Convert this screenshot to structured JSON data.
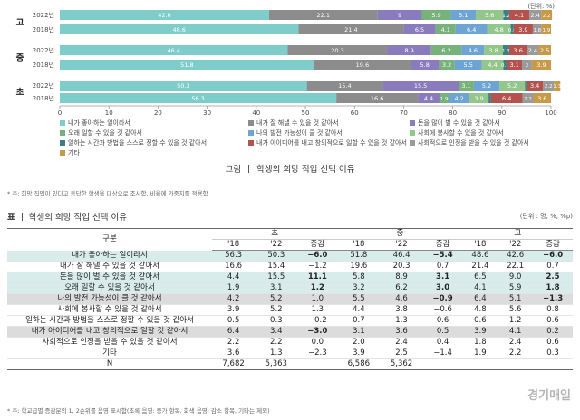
{
  "chart_data": {
    "type": "bar",
    "stacked": true,
    "orientation": "horizontal",
    "unit": "(단위: %)",
    "xlim": [
      0,
      100
    ],
    "xticks": [
      "0",
      "10",
      "20",
      "30",
      "40",
      "50",
      "60",
      "70",
      "80",
      "90",
      "100"
    ],
    "groups": [
      {
        "name": "고",
        "rows": [
          {
            "year": "2022년",
            "values": [
              42.6,
              22.1,
              9.0,
              5.9,
              5.1,
              5.6,
              1.2,
              4.1,
              2.4,
              2.2
            ],
            "labels": [
              "42.6",
              "22.1",
              "9",
              "5.9",
              "5.1",
              "5.6",
              "1.2",
              "4.1",
              "2.4",
              "2.2"
            ]
          },
          {
            "year": "2018년",
            "values": [
              48.6,
              21.4,
              6.5,
              4.1,
              6.4,
              4.8,
              0.6,
              3.9,
              1.8,
              1.9
            ],
            "labels": [
              "48.6",
              "21.4",
              "6.5",
              "4.1",
              "6.4",
              "4.8",
              "0.6",
              "3.9",
              "1.8",
              "1.9"
            ]
          }
        ]
      },
      {
        "name": "중",
        "rows": [
          {
            "year": "2022년",
            "values": [
              46.4,
              20.3,
              8.9,
              6.2,
              4.6,
              3.8,
              1.3,
              3.6,
              2.4,
              2.5
            ],
            "labels": [
              "46.4",
              "20.3",
              "8.9",
              "6.2",
              "4.6",
              "3.8",
              "1.3",
              "3.6",
              "2.4",
              "2.5"
            ]
          },
          {
            "year": "2018년",
            "values": [
              51.8,
              19.6,
              5.8,
              3.2,
              5.5,
              4.4,
              0.7,
              3.1,
              2.0,
              3.9
            ],
            "labels": [
              "51.8",
              "19.6",
              "5.8",
              "3.2",
              "5.5",
              "4.4",
              "0.7",
              "3.1",
              "2",
              "3.9"
            ]
          }
        ]
      },
      {
        "name": "초",
        "rows": [
          {
            "year": "2022년",
            "values": [
              50.3,
              15.4,
              15.5,
              3.1,
              5.2,
              5.2,
              0.3,
              3.4,
              2.2,
              1.3
            ],
            "labels": [
              "50.3",
              "15.4",
              "15.5",
              "3.1",
              "5.2",
              "5.2",
              "0.3",
              "3.4",
              "2.2",
              "1.3"
            ]
          },
          {
            "year": "2018년",
            "values": [
              56.3,
              16.6,
              4.4,
              1.9,
              4.2,
              3.9,
              0.5,
              6.4,
              2.2,
              3.6
            ],
            "labels": [
              "56.3",
              "16.6",
              "4.4",
              "1.9",
              "4.2",
              "3.9",
              "0.5",
              "6.4",
              "2.2",
              "3.6"
            ]
          }
        ]
      }
    ],
    "series": [
      {
        "name": "내가 좋아하는 일이라서",
        "color": "#7ecdcb"
      },
      {
        "name": "내가 잘 해낼 수 있을 것 같아서",
        "color": "#8c8c8c"
      },
      {
        "name": "돈을 많이 벌 수 있을 것 같아서",
        "color": "#8a7bbd"
      },
      {
        "name": "오래 일할 수 있을 것 같아서",
        "color": "#77b27a"
      },
      {
        "name": "나의 발전 가능성이 클 것 같아서",
        "color": "#6ea4d3"
      },
      {
        "name": "사회에 봉사할 수 있을 것 같아서",
        "color": "#93c68a"
      },
      {
        "name": "일하는 시간과 방법을 스스로 정할 수 있을 것 같아서",
        "color": "#3d7e82"
      },
      {
        "name": "내가 아이디어를 내고 창의적으로 일할 수 있을 것 같아서",
        "color": "#b3524e"
      },
      {
        "name": "사회적으로 인정을 받을 수 있을 것 같아서",
        "color": "#9a9a9a"
      },
      {
        "name": "기타",
        "color": "#c79a4a"
      }
    ],
    "legend_order": [
      0,
      1,
      2,
      3,
      4,
      5,
      6,
      7,
      8,
      9
    ],
    "legend_placement": "bottom"
  },
  "figure": {
    "label": "그림",
    "title": "학생의 희망 직업 선택 이유",
    "note": "* 주: 희망 직업이 있다고 응답한 학생을 대상으로 조사함, 비율에 가중치를 적용함"
  },
  "table": {
    "label": "표",
    "title": "학생의 희망 직업 선택 이유",
    "unit": "(단위 : 명, %, %p)",
    "row_header": "구분",
    "groups": [
      "초",
      "중",
      "고"
    ],
    "subheaders": [
      "'18",
      "'22",
      "증감"
    ],
    "rows": [
      {
        "label": "내가 좋아하는 일이라서",
        "hl": "hl",
        "vals": [
          "56.3",
          "50.3",
          "−6.0",
          "51.8",
          "46.4",
          "−5.4",
          "48.6",
          "42.6",
          "−6.0"
        ],
        "bold": [
          2,
          5,
          8
        ]
      },
      {
        "label": "내가 잘 해낼 수 있을 것 같아서",
        "hl": "",
        "vals": [
          "16.6",
          "15.4",
          "−1.2",
          "19.6",
          "20.3",
          "0.7",
          "21.4",
          "22.1",
          "0.7"
        ],
        "bold": []
      },
      {
        "label": "돈을 많이 벌 수 있을 것 같아서",
        "hl": "hl",
        "vals": [
          "4.4",
          "15.5",
          "11.1",
          "5.8",
          "8.9",
          "3.1",
          "6.5",
          "9.0",
          "2.5"
        ],
        "bold": [
          2,
          5,
          8
        ]
      },
      {
        "label": "오래 일할 수 있을 것 같아서",
        "hl": "hl",
        "vals": [
          "1.9",
          "3.1",
          "1.2",
          "3.2",
          "6.2",
          "3.0",
          "4.1",
          "5.9",
          "1.8"
        ],
        "bold": [
          2,
          5,
          8
        ]
      },
      {
        "label": "나의 발전 가능성이 클 것 같아서",
        "hl": "hlg",
        "vals": [
          "4.2",
          "5.2",
          "1.0",
          "5.5",
          "4.6",
          "−0.9",
          "6.4",
          "5.1",
          "−1.3"
        ],
        "bold": [
          5,
          8
        ]
      },
      {
        "label": "사회에 봉사할 수 있을 것 같아서",
        "hl": "",
        "vals": [
          "3.9",
          "5.2",
          "1.3",
          "4.4",
          "3.8",
          "−0.6",
          "4.8",
          "5.6",
          "0.8"
        ],
        "bold": []
      },
      {
        "label": "일하는 시간과 방법을 스스로 정할 수 있을 것 같아서",
        "hl": "",
        "vals": [
          "0.5",
          "0.3",
          "−0.2",
          "0.7",
          "1.3",
          "0.6",
          "0.6",
          "1.2",
          "0.6"
        ],
        "bold": []
      },
      {
        "label": "내가 아이디어를 내고 창의적으로 일할 것 같아서",
        "hl": "hlg",
        "vals": [
          "6.4",
          "3.4",
          "−3.0",
          "3.1",
          "3.6",
          "0.5",
          "3.9",
          "4.1",
          "0.2"
        ],
        "bold": [
          2
        ]
      },
      {
        "label": "사회적으로 인정을 받을 수 있을 것 같아서",
        "hl": "",
        "vals": [
          "2.2",
          "2.2",
          "0.0",
          "2.0",
          "2.4",
          "0.4",
          "1.8",
          "2.4",
          "0.6"
        ],
        "bold": []
      },
      {
        "label": "기타",
        "hl": "",
        "vals": [
          "3.6",
          "1.3",
          "−2.3",
          "3.9",
          "2.5",
          "−1.4",
          "1.9",
          "2.2",
          "0.3"
        ],
        "bold": []
      },
      {
        "label": "N",
        "hl": "",
        "vals": [
          "7,682",
          "5,363",
          "",
          "6,586",
          "5,362",
          "",
          "",
          "",
          ""
        ],
        "bold": []
      }
    ],
    "note": "* 주: 학교급별 증감분의 1, 2순위를 음영 표시함(초록 음영: 증가 항목, 회색 음영: 감소 항목, 기타는 제외)"
  },
  "watermark": "경기매일"
}
